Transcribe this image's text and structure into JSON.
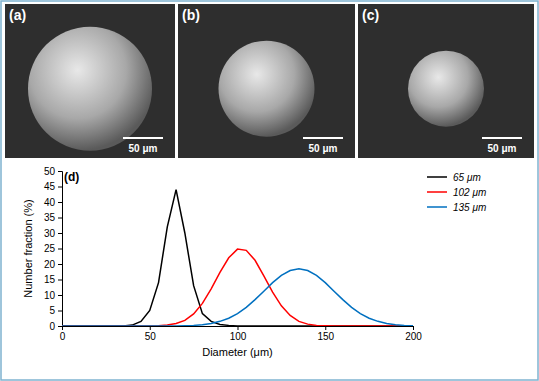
{
  "chart_data": {
    "type": "line",
    "title": "(d)",
    "x_label": "Diameter (μm)",
    "y_label": "Number fraction (%)",
    "x": [
      0,
      5,
      10,
      15,
      20,
      25,
      30,
      35,
      40,
      45,
      50,
      55,
      60,
      65,
      70,
      75,
      80,
      85,
      90,
      95,
      100,
      105,
      110,
      115,
      120,
      125,
      130,
      135,
      140,
      145,
      150,
      155,
      160,
      165,
      170,
      175,
      180,
      185,
      190,
      195,
      200
    ],
    "series": [
      {
        "name": "65 μm",
        "color": "#000000",
        "values": [
          0,
          0,
          0,
          0,
          0,
          0,
          0,
          0,
          0.3,
          1.5,
          5,
          14,
          32,
          44,
          30,
          13,
          4,
          1.5,
          0.5,
          0.2,
          0,
          0,
          0,
          0,
          0,
          0,
          0,
          0,
          0,
          0,
          0,
          0,
          0,
          0,
          0,
          0,
          0,
          0,
          0,
          0,
          0
        ]
      },
      {
        "name": "102 μm",
        "color": "#ff0000",
        "values": [
          0,
          0,
          0,
          0,
          0,
          0,
          0,
          0,
          0,
          0,
          0,
          0.1,
          0.3,
          0.8,
          1.8,
          3.9,
          7.3,
          12,
          17.3,
          22,
          24.8,
          24.4,
          21.2,
          16.2,
          10.9,
          6.5,
          3.4,
          1.5,
          0.6,
          0.2,
          0.1,
          0,
          0,
          0,
          0,
          0,
          0,
          0,
          0,
          0,
          0
        ]
      },
      {
        "name": "135 μm",
        "color": "#0070c0",
        "values": [
          0,
          0,
          0,
          0,
          0,
          0,
          0,
          0,
          0,
          0,
          0,
          0,
          0,
          0,
          0.1,
          0.2,
          0.4,
          0.8,
          1.5,
          2.5,
          4,
          6,
          8.5,
          11.2,
          14,
          16.3,
          17.9,
          18.5,
          17.9,
          16.3,
          14,
          11.2,
          8.5,
          6,
          4,
          2.5,
          1.5,
          0.8,
          0.4,
          0.2,
          0.1
        ]
      }
    ],
    "xlim": [
      0,
      200
    ],
    "xticks": [
      0,
      50,
      100,
      150,
      200
    ],
    "ylim": [
      0,
      50
    ],
    "yticks": [
      0,
      5,
      10,
      15,
      20,
      25,
      30,
      35,
      40,
      45,
      50
    ],
    "grid": false,
    "legend": "upper right"
  },
  "panels": [
    {
      "label": "(a)",
      "scale_bar": "50 μm"
    },
    {
      "label": "(b)",
      "scale_bar": "50 μm"
    },
    {
      "label": "(c)",
      "scale_bar": "50 μm"
    }
  ]
}
